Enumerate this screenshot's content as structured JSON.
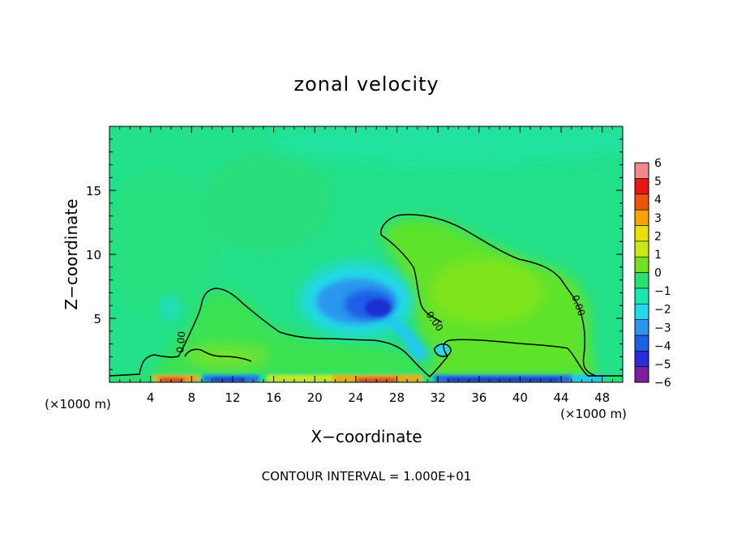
{
  "chart_data": {
    "type": "heatmap",
    "title": "zonal velocity",
    "xlabel": "X−coordinate",
    "ylabel": "Z−coordinate",
    "xlim": [
      0,
      50
    ],
    "ylim": [
      0,
      20
    ],
    "x_unit_left": "(×1000 m)",
    "x_unit_right": "(×1000 m)",
    "x_ticks": [
      4,
      8,
      12,
      16,
      20,
      24,
      28,
      32,
      36,
      40,
      44,
      48
    ],
    "y_ticks": [
      5,
      10,
      15
    ],
    "colorbar": {
      "levels": [
        -6,
        -5,
        -4,
        -3,
        -2,
        -1,
        0,
        1,
        2,
        3,
        4,
        5,
        6
      ],
      "labels": [
        "6",
        "5",
        "4",
        "3",
        "2",
        "1",
        "0",
        "−1",
        "−2",
        "−3",
        "−4",
        "−5",
        "−6"
      ],
      "colors": [
        "#7a1fa0",
        "#2b2bd8",
        "#1f5fe6",
        "#2a96ee",
        "#22d8ea",
        "#19e8b0",
        "#29e070",
        "#74e01e",
        "#c8e81a",
        "#e8de10",
        "#f5a400",
        "#f05212",
        "#e81616",
        "#f08a8a"
      ]
    },
    "contour_label": "0.00",
    "footer": "CONTOUR INTERVAL =  1.000E+01",
    "field_features": [
      {
        "kind": "negative_core",
        "x": 25.5,
        "z": 5.8,
        "value": -5.2
      },
      {
        "kind": "negative_lobe",
        "x": 30.5,
        "z": 3.0,
        "value": -2.0
      },
      {
        "kind": "positive_region",
        "x": 38.0,
        "z": 7.5,
        "value": 1.2
      },
      {
        "kind": "near_surface_positive",
        "x": 24.0,
        "z": 0.2,
        "value": 3.5
      },
      {
        "kind": "near_surface_negative",
        "x": 37.0,
        "z": 0.2,
        "value": -4.5
      }
    ]
  }
}
